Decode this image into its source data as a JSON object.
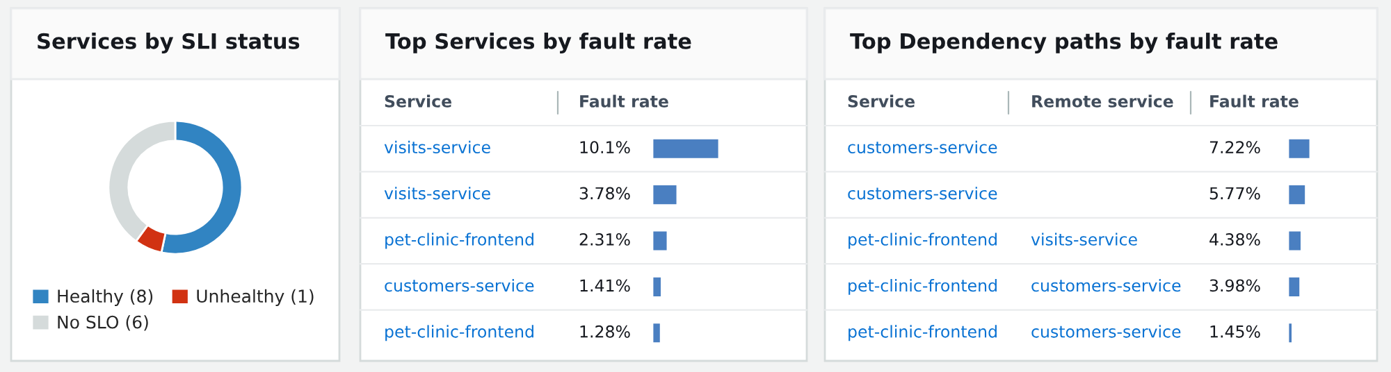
{
  "chart_data": [
    {
      "type": "donut",
      "title": "Services by SLI status",
      "categories": [
        "Healthy (8)",
        "Unhealthy (1)",
        "No SLO (6)"
      ],
      "values": [
        8,
        1,
        6
      ],
      "colors": [
        "#3184c2",
        "#d13212",
        "#d5dbdb"
      ],
      "legend": "bottom"
    },
    {
      "type": "bar",
      "orientation": "horizontal",
      "title": "Top Services by fault rate",
      "ylabel": "Service",
      "xlabel": "Fault rate",
      "categories": [
        "visits-service",
        "visits-service",
        "pet-clinic-frontend",
        "customers-service",
        "pet-clinic-frontend"
      ],
      "series": [
        {
          "color": "#4a7fc1",
          "values": [
            10.1,
            3.78,
            2.31,
            1.41,
            1.28
          ],
          "value_labels": [
            "10.1%",
            "3.78%",
            "2.31%",
            "1.41%",
            "1.28%"
          ]
        }
      ]
    },
    {
      "type": "bar",
      "orientation": "horizontal",
      "title": "Top Dependency paths by fault rate",
      "ylabel": "Service",
      "y2label": "Remote service",
      "xlabel": "Fault rate",
      "categories": [
        "customers-service",
        "customers-service",
        "pet-clinic-frontend",
        "pet-clinic-frontend",
        "pet-clinic-frontend"
      ],
      "y2_categories": [
        null,
        null,
        "visits-service",
        "customers-service",
        "customers-service"
      ],
      "series": [
        {
          "color": "#4a7fc1",
          "values": [
            7.22,
            5.77,
            4.38,
            3.98,
            1.45
          ],
          "value_labels": [
            "7.22%",
            "5.77%",
            "4.38%",
            "3.98%",
            "1.45%"
          ]
        }
      ]
    }
  ]
}
